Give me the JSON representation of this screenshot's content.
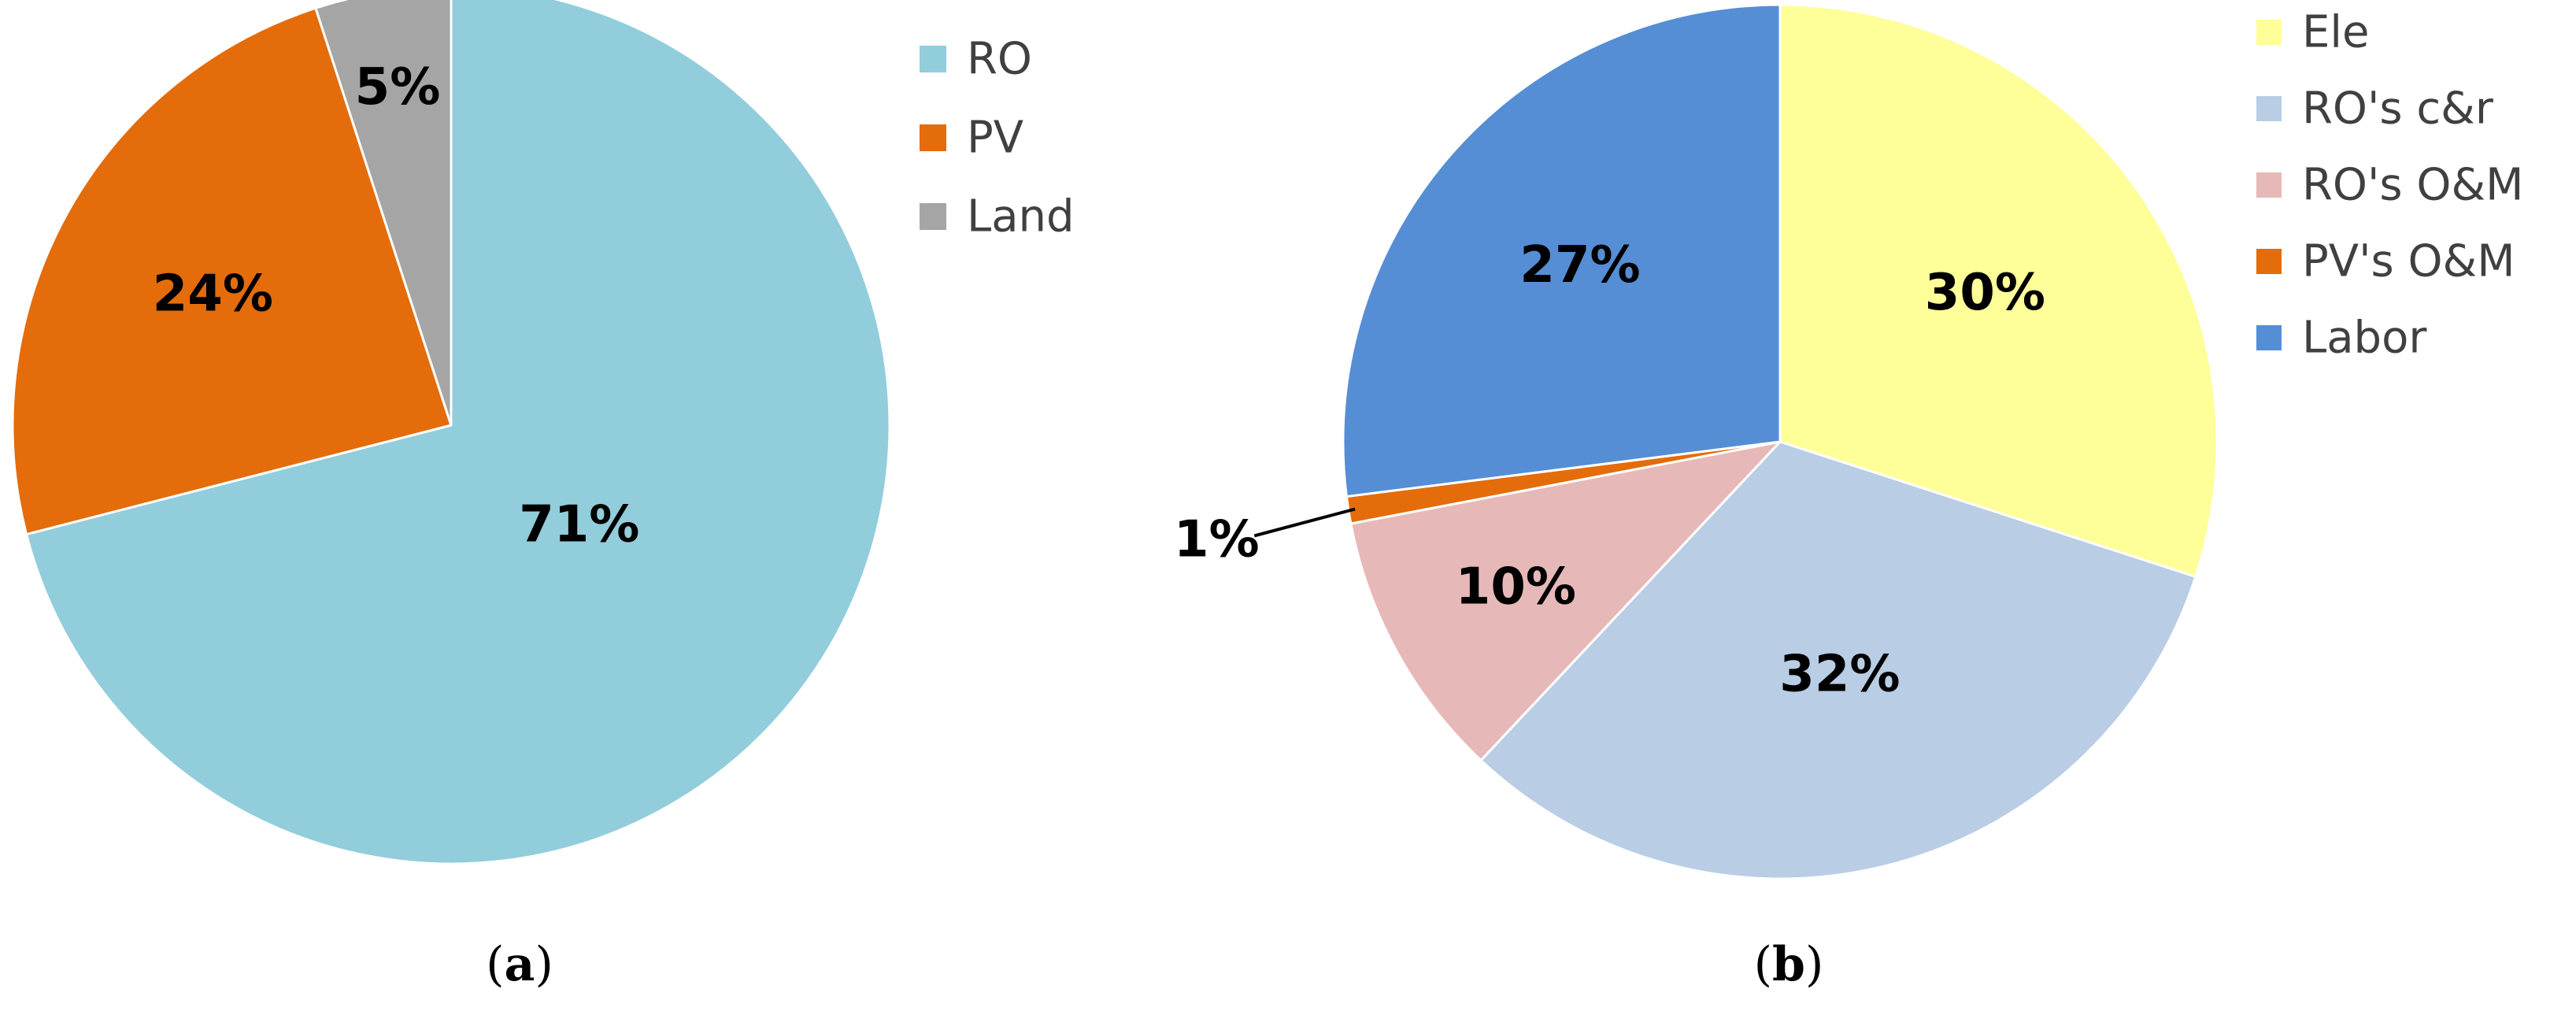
{
  "chart_data": [
    {
      "type": "pie",
      "caption": "a",
      "legend_position": "right",
      "slices": [
        {
          "name": "RO",
          "value": 71,
          "label": "71%",
          "color": "#92CDDC"
        },
        {
          "name": "PV",
          "value": 24,
          "label": "24%",
          "color": "#E46C0A"
        },
        {
          "name": "Land",
          "value": 5,
          "label": "5%",
          "color": "#A5A5A5"
        }
      ]
    },
    {
      "type": "pie",
      "caption": "b",
      "legend_position": "right",
      "slices": [
        {
          "name": "Ele",
          "value": 30,
          "label": "30%",
          "color": "#FFFF99"
        },
        {
          "name": "RO's c&r",
          "value": 32,
          "label": "32%",
          "color": "#B9CDE5"
        },
        {
          "name": "RO's O&M",
          "value": 10,
          "label": "10%",
          "color": "#E6B9B8"
        },
        {
          "name": "PV's O&M",
          "value": 1,
          "label": "1%",
          "color": "#E46C0A"
        },
        {
          "name": "Labor",
          "value": 27,
          "label": "27%",
          "color": "#558ED5"
        }
      ]
    }
  ]
}
